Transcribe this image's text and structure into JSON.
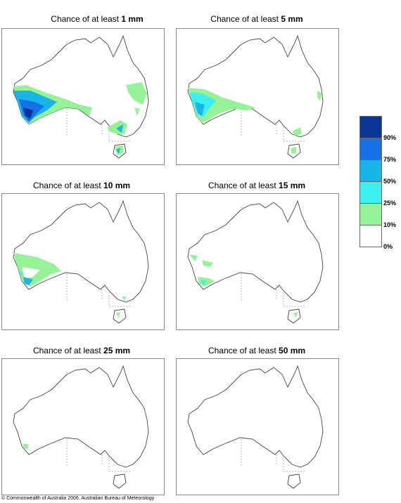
{
  "panels": [
    {
      "title_prefix": "Chance of at least ",
      "threshold": "1 mm"
    },
    {
      "title_prefix": "Chance of at least ",
      "threshold": "5 mm"
    },
    {
      "title_prefix": "Chance of at least ",
      "threshold": "10 mm"
    },
    {
      "title_prefix": "Chance of at least ",
      "threshold": "15 mm"
    },
    {
      "title_prefix": "Chance of at least ",
      "threshold": "25 mm"
    },
    {
      "title_prefix": "Chance of at least ",
      "threshold": "50 mm"
    }
  ],
  "legend": {
    "labels": [
      "90%",
      "75%",
      "50%",
      "25%",
      "10%",
      "0%"
    ],
    "colors": [
      "#0a3596",
      "#1670e6",
      "#18b6e8",
      "#3cf0f0",
      "#96f296",
      "#ffffff"
    ]
  },
  "copyright": "© Commonwealth of Australia 2006, Australian Bureau of Meteorology"
}
